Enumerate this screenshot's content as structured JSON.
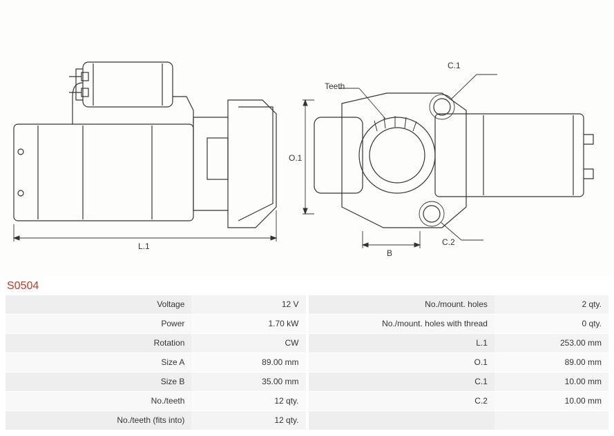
{
  "part_number": "S0504",
  "diagram": {
    "labels": {
      "L1": "L.1",
      "O1": "O.1",
      "B": "B",
      "C1": "C.1",
      "C2": "C.2",
      "Teeth": "Teeth"
    },
    "stroke_color": "#333333",
    "stroke_width": 1.2,
    "background": "#fdfdfb",
    "label_fontsize": 12,
    "label_color": "#333333"
  },
  "specs_left": [
    {
      "key": "Voltage",
      "val": "12 V"
    },
    {
      "key": "Power",
      "val": "1.70 kW"
    },
    {
      "key": "Rotation",
      "val": "CW"
    },
    {
      "key": "Size A",
      "val": "89.00 mm"
    },
    {
      "key": "Size B",
      "val": "35.00 mm"
    },
    {
      "key": "No./teeth",
      "val": "12 qty."
    },
    {
      "key": "No./teeth (fits into)",
      "val": "12 qty."
    }
  ],
  "specs_right": [
    {
      "key": "No./mount. holes",
      "val": "2 qty."
    },
    {
      "key": "No./mount. holes with thread",
      "val": "0 qty."
    },
    {
      "key": "L.1",
      "val": "253.00 mm"
    },
    {
      "key": "O.1",
      "val": "89.00 mm"
    },
    {
      "key": "C.1",
      "val": "10.00 mm"
    },
    {
      "key": "C.2",
      "val": "10.00 mm"
    },
    {
      "key": "",
      "val": ""
    }
  ],
  "colors": {
    "part_number": "#c0392b",
    "row_alt": "#eeeeee",
    "row_plain": "#f8f8f8",
    "text": "#333333"
  }
}
